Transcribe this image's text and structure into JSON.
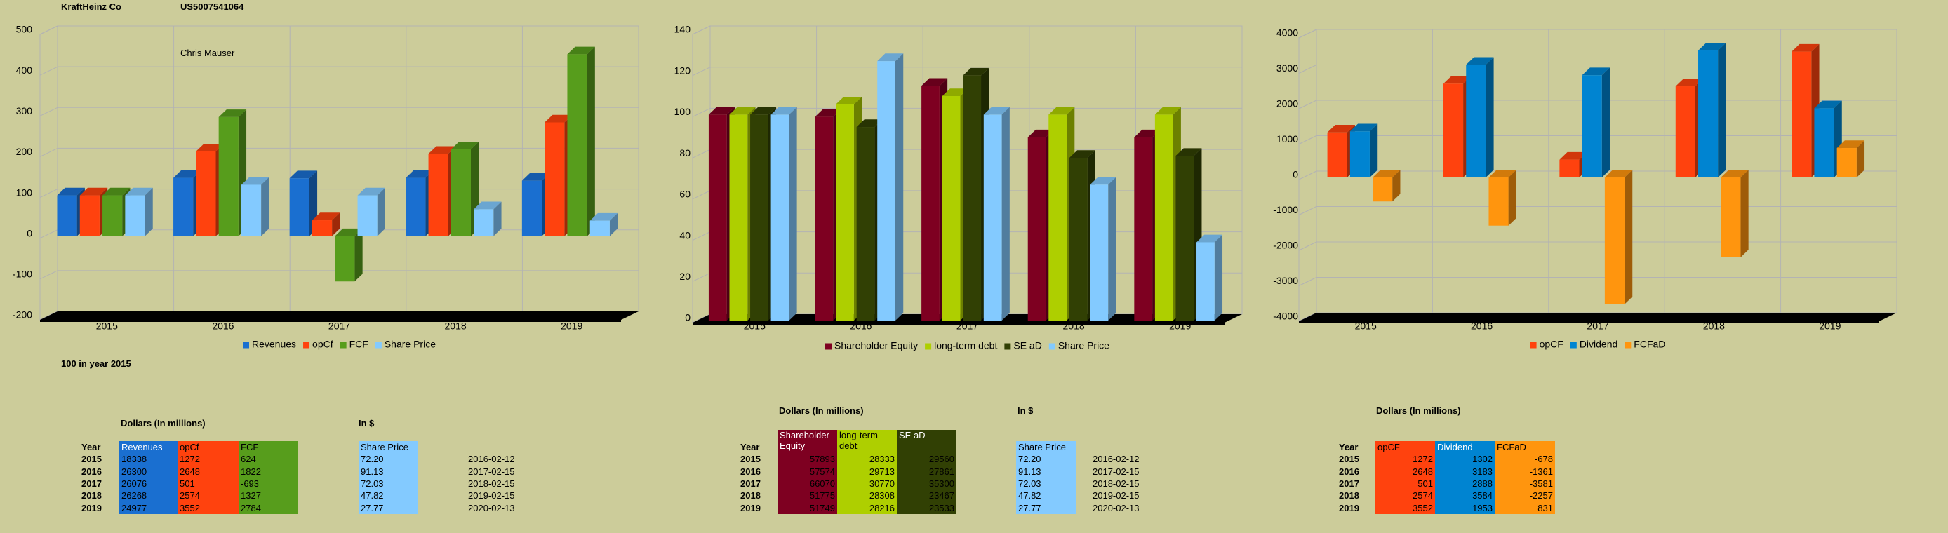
{
  "header": {
    "company": "KraftHeinz Co",
    "isin": "US5007541064",
    "author": "Chris Mauser",
    "note": "100 in year 2015"
  },
  "chart_data": [
    {
      "type": "bar",
      "categories": [
        "2015",
        "2016",
        "2017",
        "2018",
        "2019"
      ],
      "series": [
        {
          "name": "Revenues",
          "color": "#1a6fd0",
          "values": [
            100,
            143,
            142,
            143,
            136
          ]
        },
        {
          "name": "opCf",
          "color": "#ff420e",
          "values": [
            100,
            208,
            39,
            202,
            279
          ]
        },
        {
          "name": "FCF",
          "color": "#579d1c",
          "values": [
            100,
            292,
            -111,
            213,
            446
          ]
        },
        {
          "name": "Share Price",
          "color": "#83caff",
          "values": [
            100,
            126,
            100,
            66,
            38
          ]
        }
      ],
      "ylim": [
        -200,
        500
      ],
      "yticks": [
        -200,
        -100,
        0,
        100,
        200,
        300,
        400,
        500
      ],
      "grid": true,
      "legend": "bottom"
    },
    {
      "type": "bar",
      "categories": [
        "2015",
        "2016",
        "2017",
        "2018",
        "2019"
      ],
      "series": [
        {
          "name": "Shareholder Equity",
          "color": "#7e0021",
          "values": [
            100,
            99,
            114,
            89,
            89
          ]
        },
        {
          "name": "long-term debt",
          "color": "#aecf00",
          "values": [
            100,
            105,
            109,
            100,
            100
          ]
        },
        {
          "name": "SE aD",
          "color": "#314004",
          "values": [
            100,
            94,
            119,
            79,
            80
          ]
        },
        {
          "name": "Share Price",
          "color": "#83caff",
          "values": [
            100,
            126,
            100,
            66,
            38
          ]
        }
      ],
      "ylim": [
        0,
        140
      ],
      "yticks": [
        0,
        20,
        40,
        60,
        80,
        100,
        120,
        140
      ],
      "grid": true,
      "legend": "bottom"
    },
    {
      "type": "bar",
      "categories": [
        "2015",
        "2016",
        "2017",
        "2018",
        "2019"
      ],
      "series": [
        {
          "name": "opCF",
          "color": "#ff420e",
          "values": [
            1272,
            2648,
            501,
            2574,
            3552
          ]
        },
        {
          "name": "Dividend",
          "color": "#0084d1",
          "values": [
            1302,
            3183,
            2888,
            3584,
            1953
          ]
        },
        {
          "name": "FCFaD",
          "color": "#ff950e",
          "values": [
            -678,
            -1361,
            -3581,
            -2257,
            831
          ]
        }
      ],
      "ylim": [
        -4000,
        4000
      ],
      "yticks": [
        -4000,
        -3000,
        -2000,
        -1000,
        0,
        1000,
        2000,
        3000,
        4000
      ],
      "grid": true,
      "legend": "bottom"
    }
  ],
  "tables": [
    {
      "title": "Dollars (In millions)",
      "row_label_header": "Year",
      "row_labels": [
        "2015",
        "2016",
        "2017",
        "2018",
        "2019"
      ],
      "columns": [
        "Revenues",
        "opCf",
        "FCF"
      ],
      "colors": [
        "#1a6fd0",
        "#ff420e",
        "#579d1c"
      ],
      "align": "left",
      "rows": [
        [
          "18338",
          "1272",
          "624"
        ],
        [
          "26300",
          "2648",
          "1822"
        ],
        [
          "26076",
          "501",
          "-693"
        ],
        [
          "26268",
          "2574",
          "1327"
        ],
        [
          "24977",
          "3552",
          "2784"
        ]
      ]
    },
    {
      "title": "In $",
      "columns": [
        "Share Price"
      ],
      "colors": [
        "#83caff"
      ],
      "align": "left",
      "rows": [
        [
          "72.20"
        ],
        [
          "91.13"
        ],
        [
          "72.03"
        ],
        [
          "47.82"
        ],
        [
          "27.77"
        ]
      ],
      "dates": [
        "2016-02-12",
        "2017-02-15",
        "2018-02-15",
        "2019-02-15",
        "2020-02-13"
      ]
    },
    {
      "title": "Dollars (In millions)",
      "row_label_header": "Year",
      "row_labels": [
        "2015",
        "2016",
        "2017",
        "2018",
        "2019"
      ],
      "columns": [
        "Shareholder Equity",
        "long-term debt",
        "SE aD"
      ],
      "colors": [
        "#7e0021",
        "#aecf00",
        "#314004"
      ],
      "align": "right",
      "rows": [
        [
          "57893",
          "28333",
          "29560"
        ],
        [
          "57574",
          "29713",
          "27861"
        ],
        [
          "66070",
          "30770",
          "35300"
        ],
        [
          "51775",
          "28308",
          "23467"
        ],
        [
          "51749",
          "28216",
          "23533"
        ]
      ]
    },
    {
      "title": "In $",
      "columns": [
        "Share Price"
      ],
      "colors": [
        "#83caff"
      ],
      "align": "left",
      "rows": [
        [
          "72.20"
        ],
        [
          "91.13"
        ],
        [
          "72.03"
        ],
        [
          "47.82"
        ],
        [
          "27.77"
        ]
      ],
      "dates": [
        "2016-02-12",
        "2017-02-15",
        "2018-02-15",
        "2019-02-15",
        "2020-02-13"
      ]
    },
    {
      "title": "Dollars (In millions)",
      "row_label_header": "Year",
      "row_labels": [
        "2015",
        "2016",
        "2017",
        "2018",
        "2019"
      ],
      "columns": [
        "opCF",
        "Dividend",
        "FCFaD"
      ],
      "colors": [
        "#ff420e",
        "#0084d1",
        "#ff950e"
      ],
      "align": "right",
      "rows": [
        [
          "1272",
          "1302",
          "-678"
        ],
        [
          "2648",
          "3183",
          "-1361"
        ],
        [
          "501",
          "2888",
          "-3581"
        ],
        [
          "2574",
          "3584",
          "-2257"
        ],
        [
          "3552",
          "1953",
          "831"
        ]
      ]
    }
  ]
}
